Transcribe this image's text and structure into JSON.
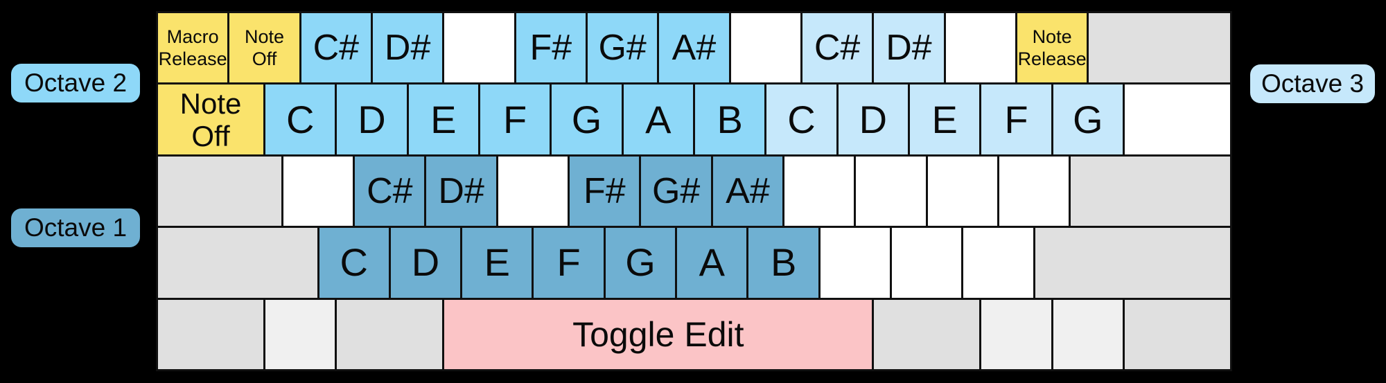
{
  "colors": {
    "background": "#000000",
    "line": "#101010",
    "text": "#0A0A0A",
    "octave1_blue": "#6FB0D2",
    "octave2_blue": "#8ED8F8",
    "octave3_blue": "#C6E8FB",
    "function_yellow": "#FAE36C",
    "edit_pink": "#FBC4C6",
    "unmapped_white": "#FFFFFF",
    "inactive_gray": "#E0E0E0",
    "inactive_light_gray": "#F0F0F0"
  },
  "octave_labels": {
    "octave2": {
      "text": "Octave 2",
      "color": "octave2_blue"
    },
    "octave1": {
      "text": "Octave 1",
      "color": "octave1_blue"
    },
    "octave3": {
      "text": "Octave 3",
      "color": "octave3_blue"
    }
  },
  "keyboard": {
    "units_per_row": 15,
    "rows": [
      {
        "keys": [
          {
            "name": "key-macro-release",
            "label": "Macro\nRelease",
            "w": 1,
            "color": "function_yellow",
            "size": "sm"
          },
          {
            "name": "key-note-off-top",
            "label": "Note\nOff",
            "w": 1,
            "color": "function_yellow",
            "size": "sm"
          },
          {
            "name": "key-note-c-sharp-oct2",
            "label": "C#",
            "w": 1,
            "color": "octave2_blue",
            "size": "lg"
          },
          {
            "name": "key-note-d-sharp-oct2",
            "label": "D#",
            "w": 1,
            "color": "octave2_blue",
            "size": "lg"
          },
          {
            "name": "key-blank-row1-a",
            "label": "",
            "w": 1,
            "color": "unmapped_white"
          },
          {
            "name": "key-note-f-sharp-oct2",
            "label": "F#",
            "w": 1,
            "color": "octave2_blue",
            "size": "lg"
          },
          {
            "name": "key-note-g-sharp-oct2",
            "label": "G#",
            "w": 1,
            "color": "octave2_blue",
            "size": "lg"
          },
          {
            "name": "key-note-a-sharp-oct2",
            "label": "A#",
            "w": 1,
            "color": "octave2_blue",
            "size": "lg"
          },
          {
            "name": "key-blank-row1-b",
            "label": "",
            "w": 1,
            "color": "unmapped_white"
          },
          {
            "name": "key-note-c-sharp-oct3",
            "label": "C#",
            "w": 1,
            "color": "octave3_blue",
            "size": "lg"
          },
          {
            "name": "key-note-d-sharp-oct3",
            "label": "D#",
            "w": 1,
            "color": "octave3_blue",
            "size": "lg"
          },
          {
            "name": "key-blank-row1-c",
            "label": "",
            "w": 1,
            "color": "unmapped_white"
          },
          {
            "name": "key-note-release",
            "label": "Note\nRelease",
            "w": 1,
            "color": "function_yellow",
            "size": "sm"
          },
          {
            "name": "key-backspace-inactive",
            "label": "",
            "w": 2,
            "color": "inactive_gray"
          }
        ]
      },
      {
        "keys": [
          {
            "name": "key-note-off-main",
            "label": "Note\nOff",
            "w": 1.5,
            "color": "function_yellow",
            "size": "md"
          },
          {
            "name": "key-note-c-oct2",
            "label": "C",
            "w": 1,
            "color": "octave2_blue",
            "size": "xl"
          },
          {
            "name": "key-note-d-oct2",
            "label": "D",
            "w": 1,
            "color": "octave2_blue",
            "size": "xl"
          },
          {
            "name": "key-note-e-oct2",
            "label": "E",
            "w": 1,
            "color": "octave2_blue",
            "size": "xl"
          },
          {
            "name": "key-note-f-oct2",
            "label": "F",
            "w": 1,
            "color": "octave2_blue",
            "size": "xl"
          },
          {
            "name": "key-note-g-oct2",
            "label": "G",
            "w": 1,
            "color": "octave2_blue",
            "size": "xl"
          },
          {
            "name": "key-note-a-oct2",
            "label": "A",
            "w": 1,
            "color": "octave2_blue",
            "size": "xl"
          },
          {
            "name": "key-note-b-oct2",
            "label": "B",
            "w": 1,
            "color": "octave2_blue",
            "size": "xl"
          },
          {
            "name": "key-note-c-oct3",
            "label": "C",
            "w": 1,
            "color": "octave3_blue",
            "size": "xl"
          },
          {
            "name": "key-note-d-oct3",
            "label": "D",
            "w": 1,
            "color": "octave3_blue",
            "size": "xl"
          },
          {
            "name": "key-note-e-oct3",
            "label": "E",
            "w": 1,
            "color": "octave3_blue",
            "size": "xl"
          },
          {
            "name": "key-note-f-oct3",
            "label": "F",
            "w": 1,
            "color": "octave3_blue",
            "size": "xl"
          },
          {
            "name": "key-note-g-oct3",
            "label": "G",
            "w": 1,
            "color": "octave3_blue",
            "size": "xl"
          },
          {
            "name": "key-blank-row2",
            "label": "",
            "w": 1.5,
            "color": "unmapped_white"
          }
        ]
      },
      {
        "keys": [
          {
            "name": "key-capslock-inactive",
            "label": "",
            "w": 1.75,
            "color": "inactive_gray"
          },
          {
            "name": "key-blank-row3-a",
            "label": "",
            "w": 1,
            "color": "unmapped_white"
          },
          {
            "name": "key-note-c-sharp-oct1",
            "label": "C#",
            "w": 1,
            "color": "octave1_blue",
            "size": "lg"
          },
          {
            "name": "key-note-d-sharp-oct1",
            "label": "D#",
            "w": 1,
            "color": "octave1_blue",
            "size": "lg"
          },
          {
            "name": "key-blank-row3-b",
            "label": "",
            "w": 1,
            "color": "unmapped_white"
          },
          {
            "name": "key-note-f-sharp-oct1",
            "label": "F#",
            "w": 1,
            "color": "octave1_blue",
            "size": "lg"
          },
          {
            "name": "key-note-g-sharp-oct1",
            "label": "G#",
            "w": 1,
            "color": "octave1_blue",
            "size": "lg"
          },
          {
            "name": "key-note-a-sharp-oct1",
            "label": "A#",
            "w": 1,
            "color": "octave1_blue",
            "size": "lg"
          },
          {
            "name": "key-blank-row3-c",
            "label": "",
            "w": 1,
            "color": "unmapped_white"
          },
          {
            "name": "key-blank-row3-d",
            "label": "",
            "w": 1,
            "color": "unmapped_white"
          },
          {
            "name": "key-blank-row3-e",
            "label": "",
            "w": 1,
            "color": "unmapped_white"
          },
          {
            "name": "key-blank-row3-f",
            "label": "",
            "w": 1,
            "color": "unmapped_white"
          },
          {
            "name": "key-enter-inactive",
            "label": "",
            "w": 2.25,
            "color": "inactive_gray"
          }
        ]
      },
      {
        "keys": [
          {
            "name": "key-left-shift-inactive",
            "label": "",
            "w": 2.25,
            "color": "inactive_gray"
          },
          {
            "name": "key-note-c-oct1",
            "label": "C",
            "w": 1,
            "color": "octave1_blue",
            "size": "xl"
          },
          {
            "name": "key-note-d-oct1",
            "label": "D",
            "w": 1,
            "color": "octave1_blue",
            "size": "xl"
          },
          {
            "name": "key-note-e-oct1",
            "label": "E",
            "w": 1,
            "color": "octave1_blue",
            "size": "xl"
          },
          {
            "name": "key-note-f-oct1",
            "label": "F",
            "w": 1,
            "color": "octave1_blue",
            "size": "xl"
          },
          {
            "name": "key-note-g-oct1",
            "label": "G",
            "w": 1,
            "color": "octave1_blue",
            "size": "xl"
          },
          {
            "name": "key-note-a-oct1",
            "label": "A",
            "w": 1,
            "color": "octave1_blue",
            "size": "xl"
          },
          {
            "name": "key-note-b-oct1",
            "label": "B",
            "w": 1,
            "color": "octave1_blue",
            "size": "xl"
          },
          {
            "name": "key-blank-row4-a",
            "label": "",
            "w": 1,
            "color": "unmapped_white"
          },
          {
            "name": "key-blank-row4-b",
            "label": "",
            "w": 1,
            "color": "unmapped_white"
          },
          {
            "name": "key-blank-row4-c",
            "label": "",
            "w": 1,
            "color": "unmapped_white"
          },
          {
            "name": "key-right-shift-inactive",
            "label": "",
            "w": 2.75,
            "color": "inactive_gray"
          }
        ]
      },
      {
        "keys": [
          {
            "name": "key-left-ctrl-inactive",
            "label": "",
            "w": 1.5,
            "color": "inactive_gray"
          },
          {
            "name": "key-left-win-inactive",
            "label": "",
            "w": 1,
            "color": "inactive_light_gray"
          },
          {
            "name": "key-left-alt-inactive",
            "label": "",
            "w": 1.5,
            "color": "inactive_gray"
          },
          {
            "name": "key-space-toggle-edit",
            "label": "Toggle Edit",
            "w": 6,
            "color": "edit_pink",
            "size": "edit"
          },
          {
            "name": "key-right-alt-inactive",
            "label": "",
            "w": 1.5,
            "color": "inactive_gray"
          },
          {
            "name": "key-right-win-inactive",
            "label": "",
            "w": 1,
            "color": "inactive_light_gray"
          },
          {
            "name": "key-menu-inactive",
            "label": "",
            "w": 1,
            "color": "inactive_light_gray"
          },
          {
            "name": "key-right-ctrl-inactive",
            "label": "",
            "w": 1.5,
            "color": "inactive_gray"
          }
        ]
      }
    ]
  }
}
